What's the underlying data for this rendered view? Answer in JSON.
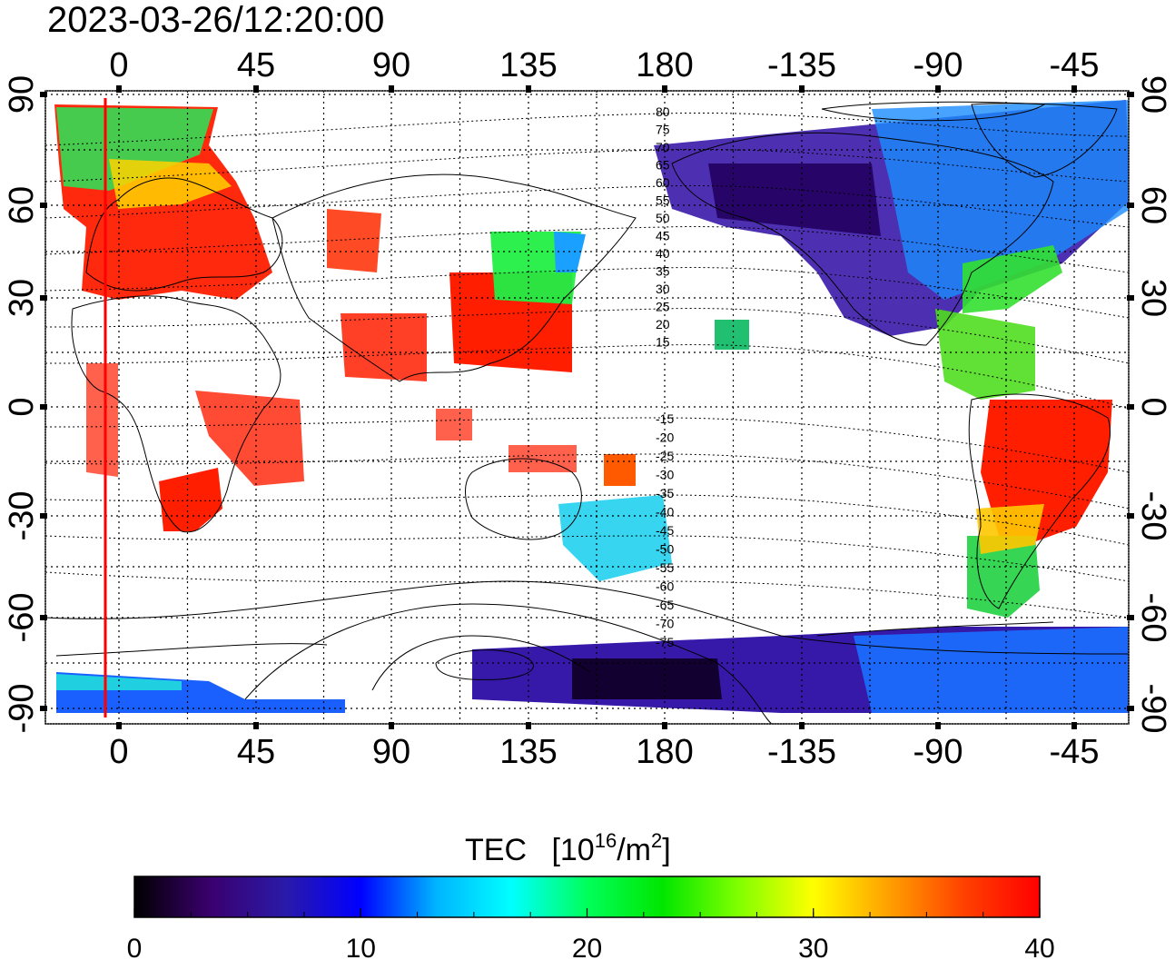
{
  "timestamp": "2023-03-26/12:20:00",
  "map": {
    "lon_ticks": [
      "0",
      "45",
      "90",
      "135",
      "180",
      "-135",
      "-90",
      "-45"
    ],
    "lat_ticks": [
      "90",
      "60",
      "30",
      "0",
      "-30",
      "-60",
      "-90"
    ],
    "contour_labels_north": [
      "80",
      "75",
      "70",
      "65",
      "60",
      "55",
      "50",
      "45",
      "40",
      "35",
      "30",
      "25",
      "20",
      "15"
    ],
    "contour_labels_south": [
      "-15",
      "-20",
      "-25",
      "-30",
      "-35",
      "-40",
      "-45",
      "-50",
      "-55",
      "-60",
      "-65",
      "-70",
      "-75"
    ],
    "colors": {
      "terminator": "#ff0000",
      "grid": "#000000"
    }
  },
  "legend": {
    "title": "TEC",
    "unit_base": "[10",
    "unit_exp1": "16",
    "unit_mid": "/m",
    "unit_exp2": "2",
    "unit_end": "]",
    "range": [
      0,
      40
    ],
    "tick_labels": [
      "0",
      "10",
      "20",
      "30",
      "40"
    ],
    "gradient_stops": [
      "#000000",
      "#3a006e",
      "#2a1aa8",
      "#0000ff",
      "#00b4ff",
      "#00ffff",
      "#00ff5a",
      "#00e600",
      "#7fff00",
      "#ffff00",
      "#ffa000",
      "#ff4000",
      "#ff0000"
    ]
  }
}
